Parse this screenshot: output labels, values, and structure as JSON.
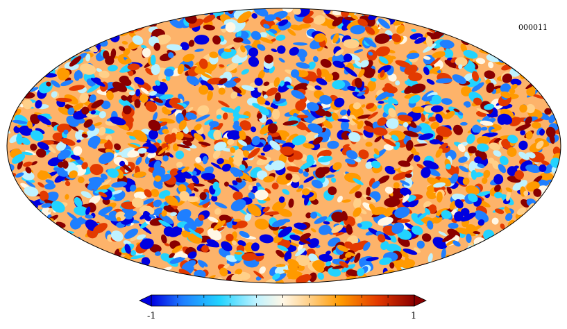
{
  "map": {
    "id_label": "000011",
    "projection": "mollweide",
    "colormap": [
      "#0000e0",
      "#1f7fff",
      "#22d3ff",
      "#bff2ff",
      "#fff7e6",
      "#ffd089",
      "#ff9a00",
      "#e33a00",
      "#8a0000"
    ]
  },
  "colorbar": {
    "min_label": "-1",
    "max_label": "1",
    "tick_count": 10
  }
}
